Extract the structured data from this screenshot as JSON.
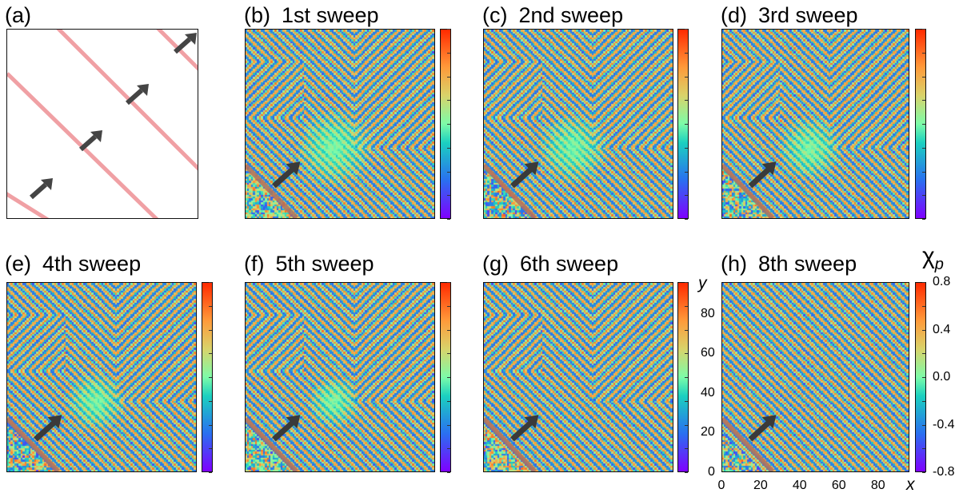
{
  "panel_a": {
    "label": "(a)",
    "colors": {
      "stripe": "#f0a0a4",
      "arrow": "#444444"
    }
  },
  "chart_data": [
    {
      "type": "heatmap",
      "label": "(b)",
      "title": "1st sweep",
      "sweep": 1
    },
    {
      "type": "heatmap",
      "label": "(c)",
      "title": "2nd sweep",
      "sweep": 2
    },
    {
      "type": "heatmap",
      "label": "(d)",
      "title": "3rd sweep",
      "sweep": 3
    },
    {
      "type": "heatmap",
      "label": "(e)",
      "title": "4th sweep",
      "sweep": 4
    },
    {
      "type": "heatmap",
      "label": "(f)",
      "title": "5th sweep",
      "sweep": 5
    },
    {
      "type": "heatmap",
      "label": "(g)",
      "title": "6th sweep",
      "sweep": 6
    },
    {
      "type": "heatmap",
      "label": "(h)",
      "title": "8th sweep",
      "sweep": 8,
      "xlabel": "x",
      "ylabel": "y",
      "xlim": [
        0,
        96
      ],
      "ylim": [
        0,
        96
      ],
      "xticks": [
        0,
        20,
        40,
        60,
        80
      ],
      "yticks": [
        0,
        20,
        40,
        60,
        80
      ]
    }
  ],
  "colorbar": {
    "label": "χ",
    "label_subscript": "p",
    "range": [
      -0.8,
      0.8
    ],
    "ticks": [
      "0.8",
      "0.4",
      "0.0",
      "-0.4",
      "-0.8"
    ],
    "tick_values": [
      0.8,
      0.4,
      0.0,
      -0.4,
      -0.8
    ]
  },
  "colors": {
    "accent_stripe": "#b07060",
    "arrow": "#3a3a3a"
  }
}
